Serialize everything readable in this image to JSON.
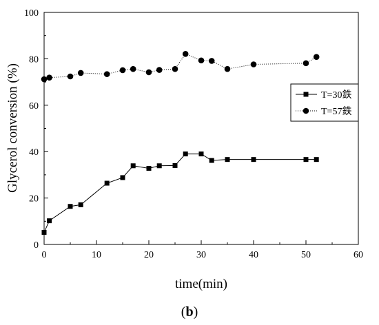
{
  "chart_data": {
    "type": "line",
    "xlabel": "time(min)",
    "ylabel": "Glycerol conversion (%)",
    "xlim": [
      0,
      60
    ],
    "ylim": [
      0,
      100
    ],
    "xticks": [
      "0",
      "10",
      "20",
      "30",
      "40",
      "50",
      "60"
    ],
    "yticks": [
      "0",
      "20",
      "40",
      "60",
      "80",
      "100"
    ],
    "grid": false,
    "legend_position": "right",
    "series": [
      {
        "name": "T=30鉄",
        "marker": "square",
        "line_style": "solid",
        "color": "#000000",
        "x": [
          0,
          1,
          5,
          7,
          12,
          15,
          17,
          20,
          22,
          25,
          27,
          30,
          32,
          35,
          40,
          50,
          52
        ],
        "y": [
          5.2,
          10.2,
          16.4,
          17.1,
          26.4,
          28.8,
          33.9,
          32.8,
          33.9,
          34.0,
          39.0,
          39.0,
          36.2,
          36.6,
          36.6,
          36.6,
          36.6
        ]
      },
      {
        "name": "T=57鉄",
        "marker": "circle",
        "line_style": "dotted",
        "color": "#000000",
        "x": [
          0,
          1,
          5,
          7,
          12,
          15,
          17,
          20,
          22,
          25,
          27,
          30,
          32,
          35,
          40,
          50,
          52
        ],
        "y": [
          71.2,
          71.9,
          72.4,
          73.9,
          73.4,
          75.1,
          75.6,
          74.2,
          75.2,
          75.6,
          82.1,
          79.3,
          79.1,
          75.6,
          77.6,
          78.1,
          80.8
        ]
      }
    ]
  },
  "caption": {
    "open": "(",
    "letter": "b",
    "close": ")"
  }
}
